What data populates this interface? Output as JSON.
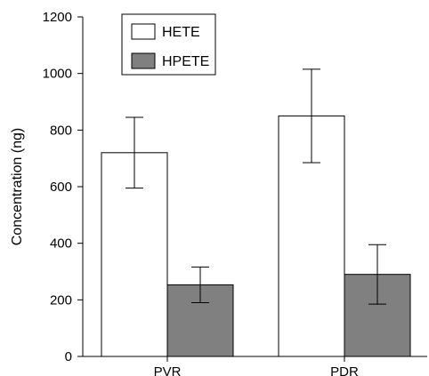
{
  "chart_data": {
    "type": "bar",
    "categories": [
      "PVR",
      "PDR"
    ],
    "series": [
      {
        "name": "HETE",
        "values": [
          720,
          850
        ],
        "error": [
          125,
          165
        ],
        "color": "#ffffff"
      },
      {
        "name": "HPETE",
        "values": [
          253,
          290
        ],
        "error": [
          63,
          105
        ],
        "color": "#808080"
      }
    ],
    "ylabel": "Concentration (ng)",
    "xlabel": "",
    "ylim": [
      0,
      1200
    ],
    "yticks": [
      0,
      200,
      400,
      600,
      800,
      1000,
      1200
    ],
    "grid": false,
    "legend_position": "top-left"
  }
}
